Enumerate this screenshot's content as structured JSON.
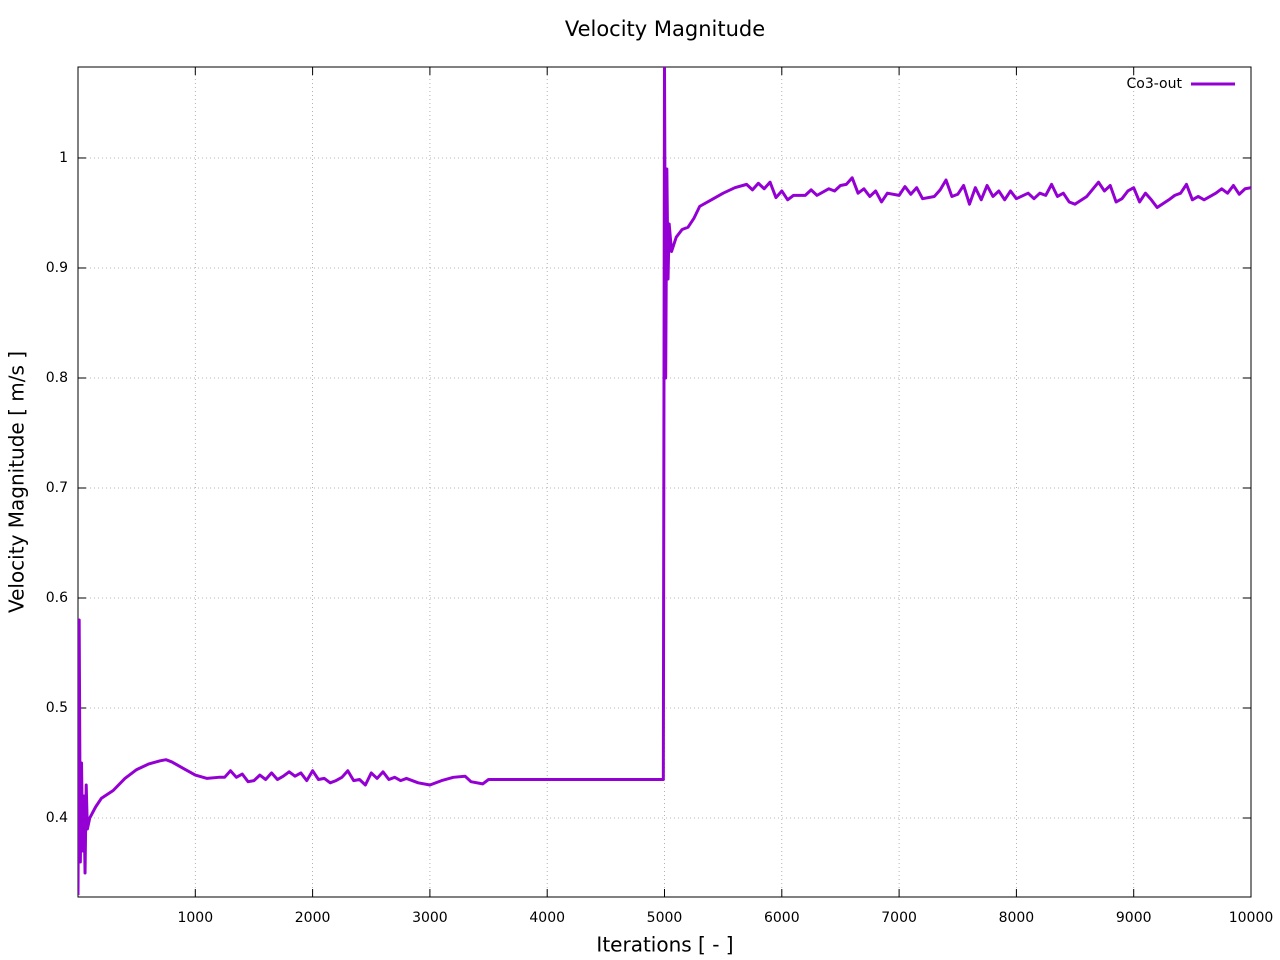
{
  "chart_data": {
    "type": "line",
    "title": "Velocity Magnitude",
    "x_label": "Iterations [ - ]",
    "y_label": "Velocity Magnitude [ m/s ]",
    "xlim": [
      0,
      10000
    ],
    "ylim": [
      0.3282,
      1.0827
    ],
    "xticks": [
      1000,
      2000,
      3000,
      4000,
      5000,
      6000,
      7000,
      8000,
      9000,
      10000
    ],
    "yticks": [
      0.4,
      0.5,
      0.6,
      0.7,
      0.8,
      0.9,
      1
    ],
    "grid": true,
    "legend": "top-right",
    "x": [
      0,
      10,
      20,
      30,
      40,
      50,
      60,
      70,
      80,
      100,
      150,
      200,
      300,
      400,
      500,
      600,
      700,
      750,
      800,
      900,
      1000,
      1100,
      1200,
      1250,
      1300,
      1350,
      1400,
      1450,
      1500,
      1550,
      1600,
      1650,
      1700,
      1750,
      1800,
      1850,
      1900,
      1950,
      2000,
      2050,
      2100,
      2150,
      2200,
      2250,
      2300,
      2350,
      2400,
      2450,
      2500,
      2550,
      2600,
      2650,
      2700,
      2750,
      2800,
      2900,
      3000,
      3100,
      3200,
      3300,
      3350,
      3450,
      3500,
      4990,
      5000,
      5010,
      5020,
      5030,
      5040,
      5060,
      5100,
      5150,
      5200,
      5250,
      5300,
      5400,
      5500,
      5600,
      5700,
      5750,
      5800,
      5850,
      5900,
      5950,
      6000,
      6050,
      6100,
      6200,
      6250,
      6300,
      6400,
      6450,
      6500,
      6550,
      6600,
      6650,
      6700,
      6750,
      6800,
      6850,
      6900,
      7000,
      7050,
      7100,
      7150,
      7200,
      7300,
      7350,
      7400,
      7450,
      7500,
      7550,
      7600,
      7650,
      7700,
      7750,
      7800,
      7850,
      7900,
      7950,
      8000,
      8100,
      8150,
      8200,
      8250,
      8300,
      8350,
      8400,
      8450,
      8500,
      8600,
      8700,
      8750,
      8800,
      8850,
      8900,
      8950,
      9000,
      9050,
      9100,
      9150,
      9200,
      9300,
      9350,
      9400,
      9450,
      9500,
      9550,
      9600,
      9700,
      9750,
      9800,
      9850,
      9900,
      9950,
      10000
    ],
    "series": [
      {
        "name": "Co3-out",
        "color": "#9400d3",
        "values": [
          0.33,
          0.58,
          0.36,
          0.45,
          0.37,
          0.42,
          0.35,
          0.43,
          0.39,
          0.4,
          0.41,
          0.418,
          0.425,
          0.436,
          0.444,
          0.449,
          0.452,
          0.453,
          0.451,
          0.445,
          0.439,
          0.436,
          0.437,
          0.437,
          0.443,
          0.437,
          0.44,
          0.433,
          0.434,
          0.439,
          0.435,
          0.441,
          0.435,
          0.438,
          0.442,
          0.438,
          0.441,
          0.434,
          0.443,
          0.435,
          0.436,
          0.432,
          0.434,
          0.437,
          0.443,
          0.434,
          0.435,
          0.43,
          0.441,
          0.436,
          0.442,
          0.435,
          0.437,
          0.434,
          0.436,
          0.432,
          0.43,
          0.434,
          0.437,
          0.438,
          0.433,
          0.431,
          0.435,
          0.435,
          1.083,
          0.8,
          0.99,
          0.89,
          0.94,
          0.915,
          0.928,
          0.935,
          0.937,
          0.945,
          0.956,
          0.962,
          0.968,
          0.973,
          0.976,
          0.971,
          0.977,
          0.972,
          0.978,
          0.964,
          0.97,
          0.962,
          0.966,
          0.966,
          0.971,
          0.966,
          0.972,
          0.97,
          0.975,
          0.976,
          0.982,
          0.968,
          0.972,
          0.965,
          0.97,
          0.96,
          0.968,
          0.966,
          0.974,
          0.967,
          0.973,
          0.963,
          0.965,
          0.971,
          0.98,
          0.965,
          0.967,
          0.975,
          0.958,
          0.973,
          0.962,
          0.975,
          0.965,
          0.97,
          0.962,
          0.97,
          0.963,
          0.968,
          0.963,
          0.968,
          0.966,
          0.976,
          0.965,
          0.968,
          0.96,
          0.958,
          0.965,
          0.978,
          0.97,
          0.975,
          0.96,
          0.963,
          0.97,
          0.973,
          0.96,
          0.968,
          0.962,
          0.955,
          0.962,
          0.966,
          0.968,
          0.976,
          0.962,
          0.965,
          0.962,
          0.968,
          0.972,
          0.968,
          0.975,
          0.967,
          0.972,
          0.973
        ]
      }
    ]
  }
}
